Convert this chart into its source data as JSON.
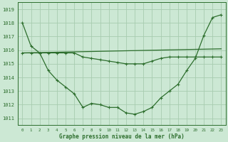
{
  "title": "Graphe pression niveau de la mer (hPa)",
  "bg_color": "#cce8d4",
  "grid_color": "#a8ccb0",
  "line_color": "#2d6e2d",
  "xlim": [
    -0.5,
    23.5
  ],
  "ylim": [
    1010.5,
    1019.5
  ],
  "yticks": [
    1011,
    1012,
    1013,
    1014,
    1015,
    1016,
    1017,
    1018,
    1019
  ],
  "xticks": [
    0,
    1,
    2,
    3,
    4,
    5,
    6,
    7,
    8,
    9,
    10,
    11,
    12,
    13,
    14,
    15,
    16,
    17,
    18,
    19,
    20,
    21,
    22,
    23
  ],
  "line1_y": [
    1018.0,
    1016.3,
    1015.8,
    1014.5,
    1013.8,
    1013.3,
    1012.8,
    1011.8,
    1012.1,
    1012.0,
    1011.8,
    1011.8,
    1011.4,
    1011.3,
    1011.5,
    1011.8,
    1012.5,
    1013.0,
    1013.5,
    1014.5,
    1015.4,
    1017.1,
    1018.4,
    1018.6
  ],
  "line2_x": [
    0,
    23
  ],
  "line2_y": [
    1015.8,
    1016.1
  ],
  "line3_y": [
    1015.8,
    1015.8,
    1015.8,
    1015.8,
    1015.8,
    1015.8,
    1015.8,
    1015.5,
    1015.4,
    1015.3,
    1015.2,
    1015.1,
    1015.0,
    1015.0,
    1015.0,
    1015.2,
    1015.4,
    1015.5,
    1015.5,
    1015.5,
    1015.5,
    1015.5,
    1015.5,
    1015.5
  ]
}
